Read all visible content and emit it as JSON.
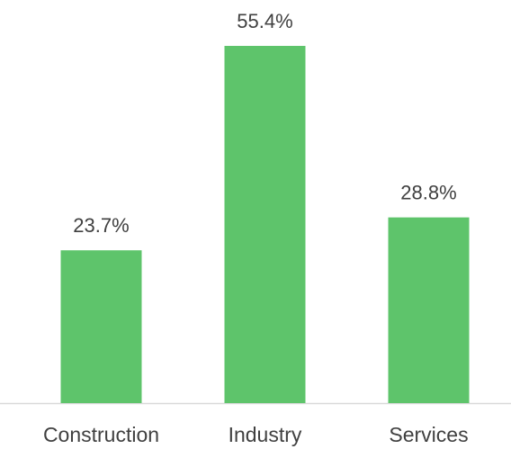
{
  "chart_data": {
    "type": "bar",
    "categories": [
      "Construction",
      "Industry",
      "Services"
    ],
    "values": [
      23.7,
      55.4,
      28.8
    ],
    "value_labels": [
      "23.7%",
      "55.4%",
      "28.8%"
    ],
    "color": "#5ec46b"
  }
}
